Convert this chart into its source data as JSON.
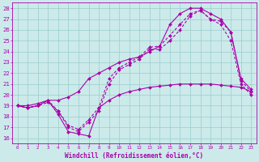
{
  "xlabel": "Windchill (Refroidissement éolien,°C)",
  "xlim": [
    -0.5,
    23.5
  ],
  "ylim": [
    15.5,
    28.5
  ],
  "yticks": [
    16,
    17,
    18,
    19,
    20,
    21,
    22,
    23,
    24,
    25,
    26,
    27,
    28
  ],
  "xticks": [
    0,
    1,
    2,
    3,
    4,
    5,
    6,
    7,
    8,
    9,
    10,
    11,
    12,
    13,
    14,
    15,
    16,
    17,
    18,
    19,
    20,
    21,
    22,
    23
  ],
  "bg_color": "#cceaea",
  "grid_color": "#99cccc",
  "line_color": "#aa00aa",
  "line1_x": [
    0,
    1,
    2,
    3,
    4,
    5,
    6,
    7,
    8,
    9,
    10,
    11,
    12,
    13,
    14,
    15,
    16,
    17,
    18,
    19,
    20,
    21,
    22,
    23
  ],
  "line1_y": [
    19,
    18.8,
    19.0,
    19.5,
    18.2,
    16.6,
    16.4,
    16.2,
    18.8,
    19.5,
    20.0,
    20.3,
    20.5,
    20.7,
    20.8,
    20.9,
    21.0,
    21.0,
    21.0,
    21.0,
    20.9,
    20.8,
    20.7,
    20.3
  ],
  "line2_x": [
    0,
    1,
    2,
    3,
    4,
    5,
    6,
    7,
    8,
    9,
    10,
    11,
    12,
    13,
    14,
    15,
    16,
    17,
    18,
    19,
    20,
    21,
    22,
    23
  ],
  "line2_y": [
    19,
    19.0,
    19.2,
    19.5,
    19.5,
    19.8,
    20.3,
    21.5,
    22.0,
    22.5,
    23.0,
    23.3,
    23.5,
    24.0,
    24.5,
    26.5,
    27.5,
    28.0,
    28.0,
    27.5,
    27.0,
    25.8,
    21.5,
    20.5
  ],
  "line3_x": [
    0,
    1,
    2,
    3,
    4,
    5,
    6,
    7,
    8,
    9,
    10,
    11,
    12,
    13,
    14,
    15,
    16,
    17,
    18,
    19,
    20,
    21,
    22,
    23
  ],
  "line3_y": [
    19,
    18.8,
    19.0,
    19.5,
    18.5,
    17.2,
    16.8,
    17.7,
    18.8,
    21.5,
    22.5,
    23.0,
    23.5,
    24.4,
    24.5,
    25.5,
    26.5,
    27.5,
    27.8,
    27.0,
    26.8,
    25.8,
    21.3,
    20.3
  ],
  "line4_x": [
    0,
    1,
    2,
    3,
    4,
    5,
    6,
    7,
    8,
    9,
    10,
    11,
    12,
    13,
    14,
    15,
    16,
    17,
    18,
    19,
    20,
    21,
    22,
    23
  ],
  "line4_y": [
    19,
    18.8,
    19.0,
    19.3,
    18.5,
    17.0,
    16.6,
    17.5,
    18.5,
    21.0,
    22.3,
    22.8,
    23.3,
    24.2,
    24.2,
    25.0,
    26.0,
    27.3,
    27.8,
    27.0,
    26.5,
    25.0,
    21.0,
    20.0
  ]
}
